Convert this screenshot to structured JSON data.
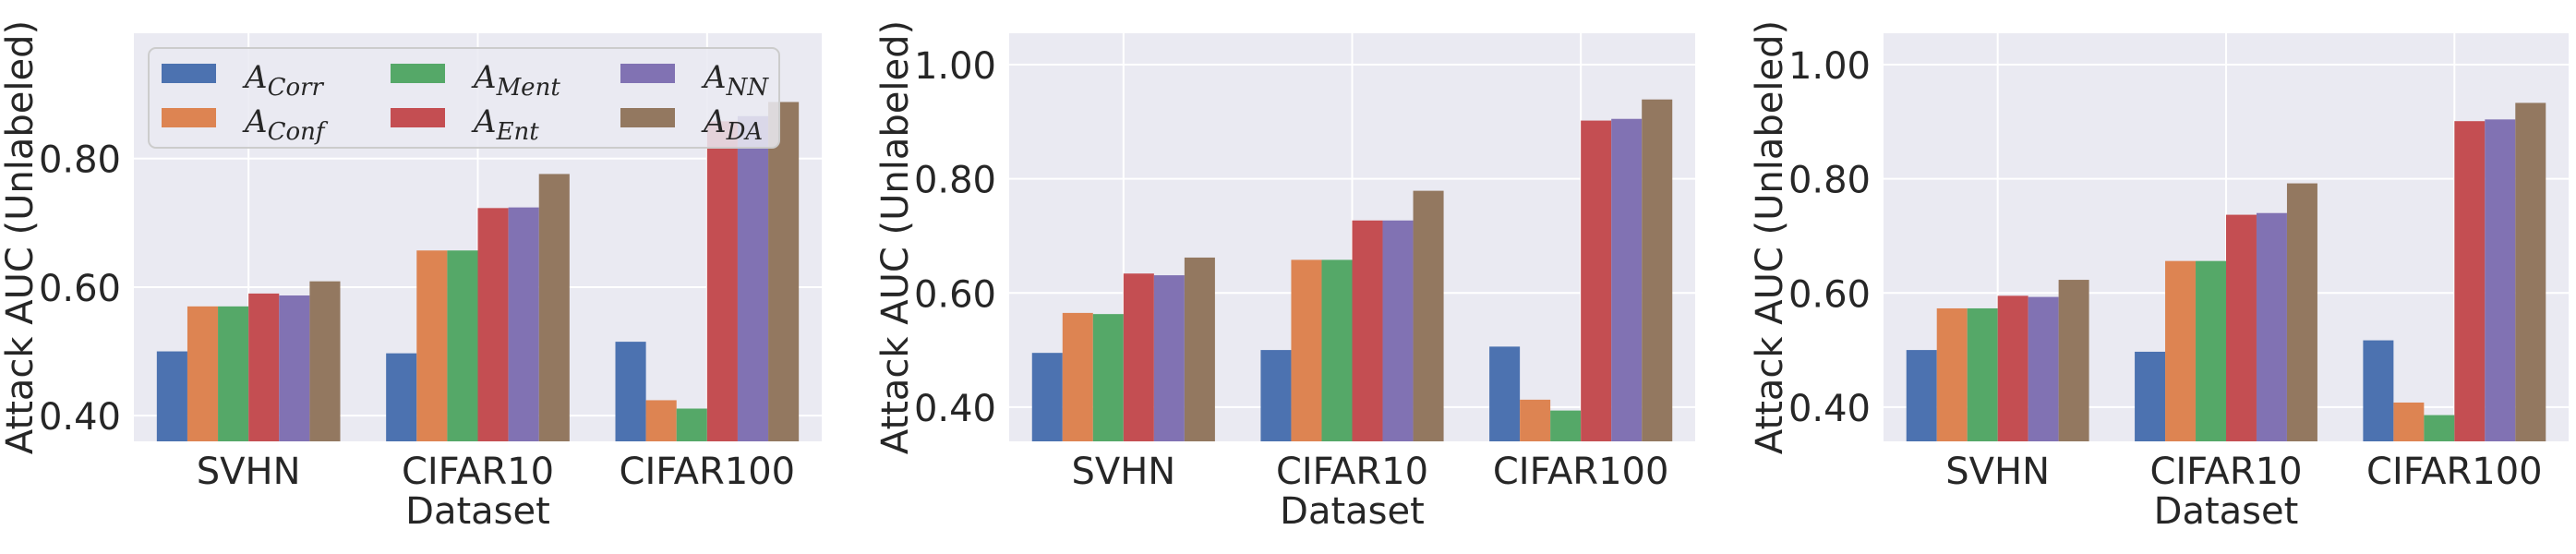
{
  "chart_data": [
    {
      "type": "bar",
      "categories": [
        "SVHN",
        "CIFAR10",
        "CIFAR100"
      ],
      "xlabel": "Dataset",
      "ylabel": "Attack AUC (Unlabeled)",
      "ylim": [
        0.36,
        0.995
      ],
      "yticks": [
        0.4,
        0.6,
        0.8
      ],
      "ytick_labels": [
        "0.40",
        "0.60",
        "0.80"
      ],
      "grid": true,
      "legend": "upper-left",
      "series": [
        {
          "name": "Corr",
          "color": "#4c72b0",
          "values": [
            0.5,
            0.497,
            0.515
          ]
        },
        {
          "name": "Conf",
          "color": "#dd8452",
          "values": [
            0.57,
            0.657,
            0.424
          ]
        },
        {
          "name": "Ment",
          "color": "#55a868",
          "values": [
            0.57,
            0.657,
            0.411
          ]
        },
        {
          "name": "Ent",
          "color": "#c44e52",
          "values": [
            0.59,
            0.723,
            0.858
          ]
        },
        {
          "name": "NN",
          "color": "#8172b3",
          "values": [
            0.587,
            0.724,
            0.866
          ]
        },
        {
          "name": "DA",
          "color": "#937860",
          "values": [
            0.609,
            0.776,
            0.888
          ]
        }
      ]
    },
    {
      "type": "bar",
      "categories": [
        "SVHN",
        "CIFAR10",
        "CIFAR100"
      ],
      "xlabel": "Dataset",
      "ylabel": "Attack AUC (Unlabeled)",
      "ylim": [
        0.34,
        1.055
      ],
      "yticks": [
        0.4,
        0.6,
        0.8,
        1.0
      ],
      "ytick_labels": [
        "0.40",
        "0.60",
        "0.80",
        "1.00"
      ],
      "grid": true,
      "legend": "",
      "series": [
        {
          "name": "Corr",
          "color": "#4c72b0",
          "values": [
            0.495,
            0.5,
            0.506
          ]
        },
        {
          "name": "Conf",
          "color": "#dd8452",
          "values": [
            0.565,
            0.658,
            0.413
          ]
        },
        {
          "name": "Ment",
          "color": "#55a868",
          "values": [
            0.563,
            0.658,
            0.394
          ]
        },
        {
          "name": "Ent",
          "color": "#c44e52",
          "values": [
            0.634,
            0.727,
            0.902
          ]
        },
        {
          "name": "NN",
          "color": "#8172b3",
          "values": [
            0.631,
            0.727,
            0.905
          ]
        },
        {
          "name": "DA",
          "color": "#937860",
          "values": [
            0.662,
            0.779,
            0.939
          ]
        }
      ]
    },
    {
      "type": "bar",
      "categories": [
        "SVHN",
        "CIFAR10",
        "CIFAR100"
      ],
      "xlabel": "Dataset",
      "ylabel": "Attack AUC (Unlabeled)",
      "ylim": [
        0.34,
        1.055
      ],
      "yticks": [
        0.4,
        0.6,
        0.8,
        1.0
      ],
      "ytick_labels": [
        "0.40",
        "0.60",
        "0.80",
        "1.00"
      ],
      "grid": true,
      "legend": "",
      "series": [
        {
          "name": "Corr",
          "color": "#4c72b0",
          "values": [
            0.5,
            0.497,
            0.517
          ]
        },
        {
          "name": "Conf",
          "color": "#dd8452",
          "values": [
            0.573,
            0.656,
            0.408
          ]
        },
        {
          "name": "Ment",
          "color": "#55a868",
          "values": [
            0.573,
            0.656,
            0.386
          ]
        },
        {
          "name": "Ent",
          "color": "#c44e52",
          "values": [
            0.595,
            0.737,
            0.901
          ]
        },
        {
          "name": "NN",
          "color": "#8172b3",
          "values": [
            0.593,
            0.74,
            0.904
          ]
        },
        {
          "name": "DA",
          "color": "#937860",
          "values": [
            0.623,
            0.792,
            0.933
          ]
        }
      ]
    }
  ],
  "legend_symbol": "A"
}
